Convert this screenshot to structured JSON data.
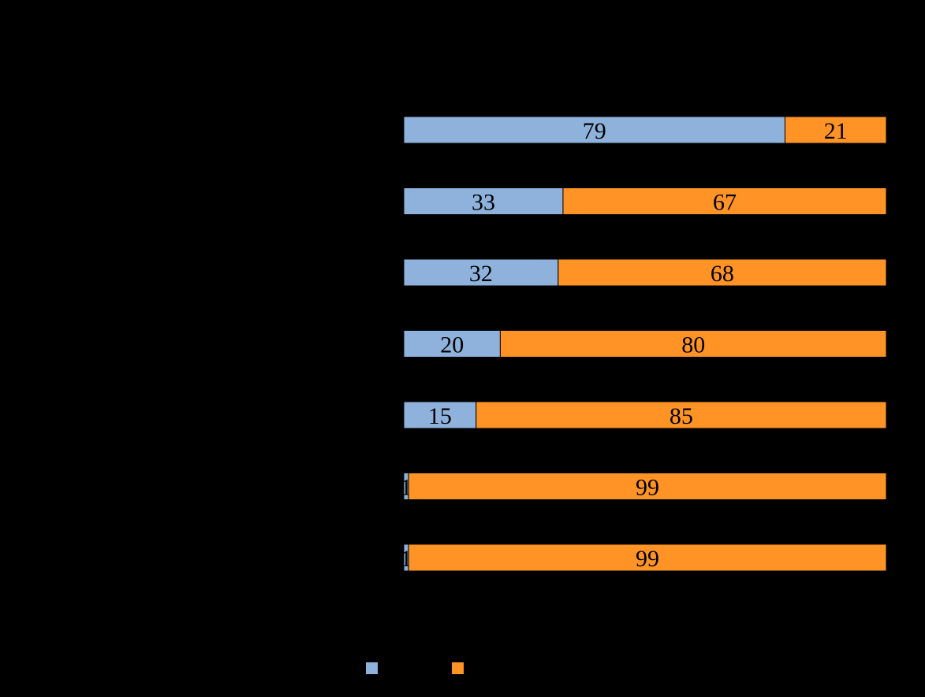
{
  "chart_data": {
    "type": "bar",
    "orientation": "horizontal",
    "stacked": true,
    "categories": [
      "",
      "",
      "",
      "",
      "",
      "",
      ""
    ],
    "series": [
      {
        "name": "",
        "color": "#8EB2DC",
        "values": [
          79,
          33,
          32,
          20,
          15,
          1,
          1
        ]
      },
      {
        "name": "",
        "color": "#FF9326",
        "values": [
          21,
          67,
          68,
          80,
          85,
          99,
          99
        ]
      }
    ],
    "xlim": [
      0,
      100
    ],
    "title": "",
    "xlabel": "",
    "ylabel": "",
    "grid": false,
    "legend_position": "bottom"
  }
}
